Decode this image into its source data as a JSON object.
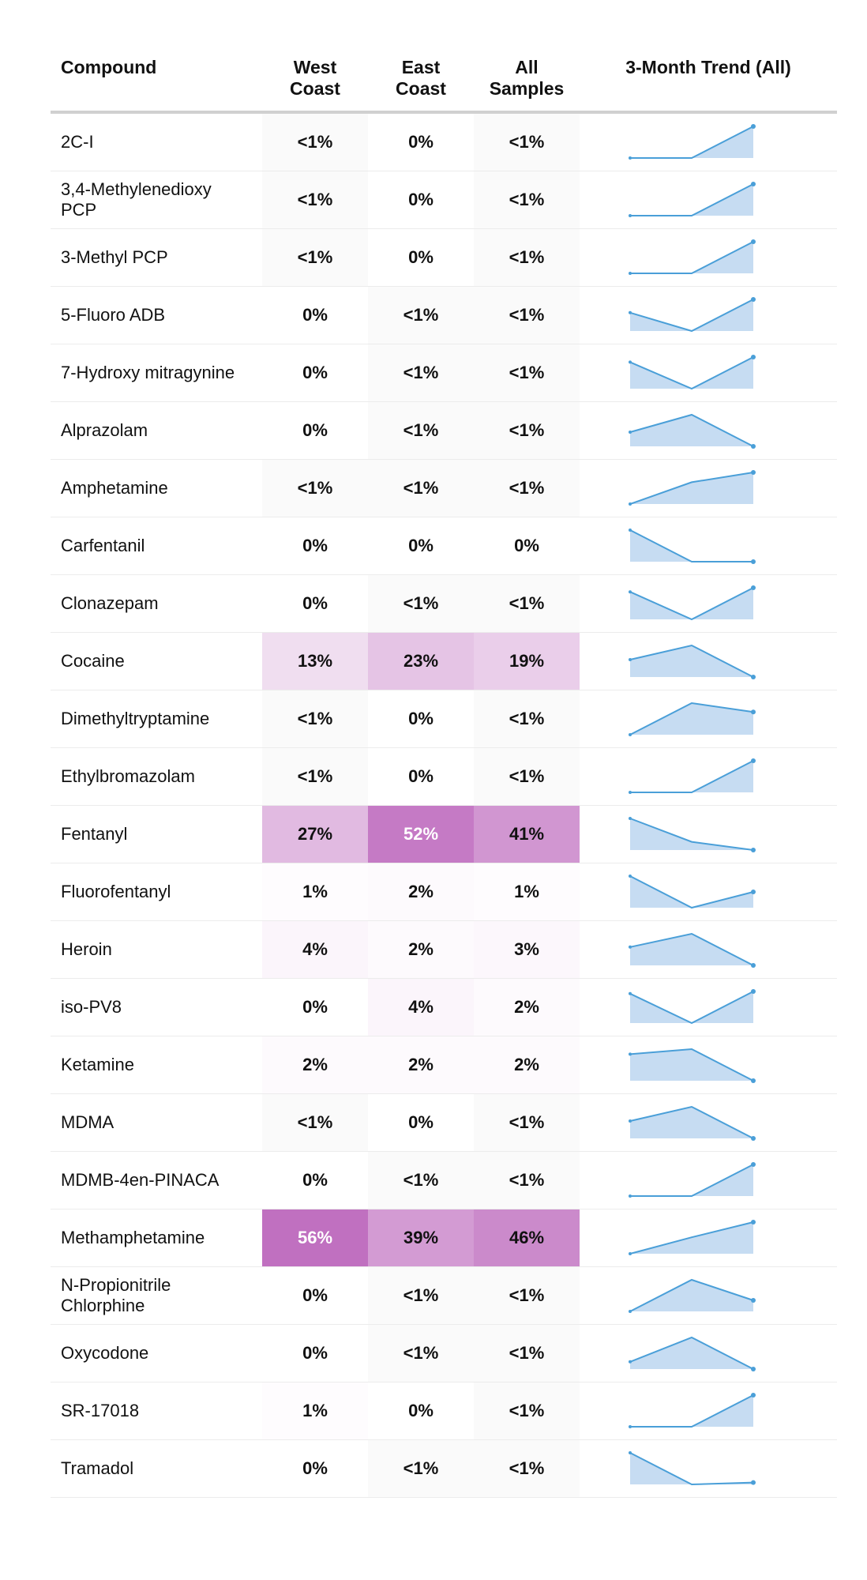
{
  "table": {
    "columns": [
      "Compound",
      "West Coast",
      "East Coast",
      "All Samples",
      "3-Month Trend (All)"
    ],
    "rows": [
      {
        "compound": "2C-I",
        "cells": [
          "<1%",
          "0%",
          "<1%"
        ],
        "trend": [
          0,
          0,
          100
        ]
      },
      {
        "compound": "3,4-Methylenedioxy PCP",
        "cells": [
          "<1%",
          "0%",
          "<1%"
        ],
        "trend": [
          0,
          0,
          100
        ]
      },
      {
        "compound": "3-Methyl PCP",
        "cells": [
          "<1%",
          "0%",
          "<1%"
        ],
        "trend": [
          0,
          0,
          100
        ]
      },
      {
        "compound": "5-Fluoro ADB",
        "cells": [
          "0%",
          "<1%",
          "<1%"
        ],
        "trend": [
          58,
          0,
          100
        ]
      },
      {
        "compound": "7-Hydroxy mitragynine",
        "cells": [
          "0%",
          "<1%",
          "<1%"
        ],
        "trend": [
          84,
          0,
          100
        ]
      },
      {
        "compound": "Alprazolam",
        "cells": [
          "0%",
          "<1%",
          "<1%"
        ],
        "trend": [
          45,
          100,
          0
        ]
      },
      {
        "compound": "Amphetamine",
        "cells": [
          "<1%",
          "<1%",
          "<1%"
        ],
        "trend": [
          0,
          69,
          100
        ]
      },
      {
        "compound": "Carfentanil",
        "cells": [
          "0%",
          "0%",
          "0%"
        ],
        "trend": [
          100,
          0,
          0
        ]
      },
      {
        "compound": "Clonazepam",
        "cells": [
          "0%",
          "<1%",
          "<1%"
        ],
        "trend": [
          87,
          0,
          100
        ]
      },
      {
        "compound": "Cocaine",
        "cells": [
          "13%",
          "23%",
          "19%"
        ],
        "trend": [
          55,
          100,
          0
        ]
      },
      {
        "compound": "Dimethyltryptamine",
        "cells": [
          "<1%",
          "0%",
          "<1%"
        ],
        "trend": [
          0,
          100,
          72
        ]
      },
      {
        "compound": "Ethylbromazolam",
        "cells": [
          "<1%",
          "0%",
          "<1%"
        ],
        "trend": [
          0,
          0,
          100
        ]
      },
      {
        "compound": "Fentanyl",
        "cells": [
          "27%",
          "52%",
          "41%"
        ],
        "trend": [
          100,
          26,
          0
        ]
      },
      {
        "compound": "Fluorofentanyl",
        "cells": [
          "1%",
          "2%",
          "1%"
        ],
        "trend": [
          100,
          0,
          50
        ]
      },
      {
        "compound": "Heroin",
        "cells": [
          "4%",
          "2%",
          "3%"
        ],
        "trend": [
          58,
          100,
          0
        ]
      },
      {
        "compound": "iso-PV8",
        "cells": [
          "0%",
          "4%",
          "2%"
        ],
        "trend": [
          93,
          0,
          100
        ]
      },
      {
        "compound": "Ketamine",
        "cells": [
          "2%",
          "2%",
          "2%"
        ],
        "trend": [
          84,
          100,
          0
        ]
      },
      {
        "compound": "MDMA",
        "cells": [
          "<1%",
          "0%",
          "<1%"
        ],
        "trend": [
          55,
          100,
          0
        ]
      },
      {
        "compound": "MDMB-4en-PINACA",
        "cells": [
          "0%",
          "<1%",
          "<1%"
        ],
        "trend": [
          0,
          0,
          100
        ]
      },
      {
        "compound": "Methamphetamine",
        "cells": [
          "56%",
          "39%",
          "46%"
        ],
        "trend": [
          0,
          52,
          100
        ]
      },
      {
        "compound": "N-Propionitrile Chlorphine",
        "cells": [
          "0%",
          "<1%",
          "<1%"
        ],
        "trend": [
          0,
          100,
          35
        ]
      },
      {
        "compound": "Oxycodone",
        "cells": [
          "0%",
          "<1%",
          "<1%"
        ],
        "trend": [
          23,
          100,
          0
        ]
      },
      {
        "compound": "SR-17018",
        "cells": [
          "1%",
          "0%",
          "<1%"
        ],
        "trend": [
          0,
          0,
          100
        ]
      },
      {
        "compound": "Tramadol",
        "cells": [
          "0%",
          "<1%",
          "<1%"
        ],
        "trend": [
          100,
          0,
          6
        ]
      }
    ],
    "heat_color": "#c070c0",
    "trace_color": "#fafafa",
    "trend_line_color": "#4a9fd8",
    "trend_fill_color": "#c6dcf2"
  }
}
